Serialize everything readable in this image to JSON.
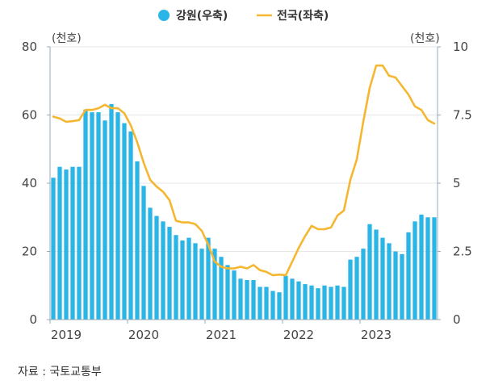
{
  "chart_data": {
    "type": "bar+line",
    "title": "",
    "legend": [
      {
        "name": "강원(우축)",
        "type": "bar",
        "color": "#29b5e8"
      },
      {
        "name": "전국(좌축)",
        "type": "line",
        "color": "#f5b732"
      }
    ],
    "left_axis": {
      "unit": "(천호)",
      "ticks": [
        "0",
        "20",
        "40",
        "60",
        "80"
      ],
      "range": [
        0,
        80
      ]
    },
    "right_axis": {
      "unit": "(천호)",
      "ticks": [
        "0",
        "2.5",
        "5",
        "7.5",
        "10"
      ],
      "range": [
        0,
        10
      ]
    },
    "x_tick_labels": [
      "2019",
      "2020",
      "2021",
      "2022",
      "2023"
    ],
    "months": [
      "2019-01",
      "2019-02",
      "2019-03",
      "2019-04",
      "2019-05",
      "2019-06",
      "2019-07",
      "2019-08",
      "2019-09",
      "2019-10",
      "2019-11",
      "2019-12",
      "2020-01",
      "2020-02",
      "2020-03",
      "2020-04",
      "2020-05",
      "2020-06",
      "2020-07",
      "2020-08",
      "2020-09",
      "2020-10",
      "2020-11",
      "2020-12",
      "2021-01",
      "2021-02",
      "2021-03",
      "2021-04",
      "2021-05",
      "2021-06",
      "2021-07",
      "2021-08",
      "2021-09",
      "2021-10",
      "2021-11",
      "2021-12",
      "2022-01",
      "2022-02",
      "2022-03",
      "2022-04",
      "2022-05",
      "2022-06",
      "2022-07",
      "2022-08",
      "2022-09",
      "2022-10",
      "2022-11",
      "2022-12",
      "2023-01",
      "2023-02",
      "2023-03",
      "2023-04",
      "2023-05",
      "2023-06",
      "2023-07",
      "2023-08",
      "2023-09",
      "2023-10",
      "2023-11",
      "2023-12"
    ],
    "gangwon_right_axis": [
      5.2,
      5.6,
      5.5,
      5.6,
      5.6,
      7.7,
      7.6,
      7.6,
      7.3,
      7.9,
      7.6,
      7.2,
      6.9,
      5.8,
      4.9,
      4.1,
      3.8,
      3.6,
      3.4,
      3.1,
      2.9,
      3.0,
      2.8,
      2.6,
      3.0,
      2.6,
      2.3,
      2.0,
      1.8,
      1.5,
      1.45,
      1.45,
      1.2,
      1.2,
      1.05,
      1.0,
      1.6,
      1.5,
      1.4,
      1.3,
      1.25,
      1.15,
      1.25,
      1.2,
      1.25,
      1.2,
      2.2,
      2.3,
      2.6,
      3.5,
      3.3,
      3.0,
      2.8,
      2.5,
      2.4,
      3.2,
      3.6,
      3.85,
      3.75,
      3.75
    ],
    "national_left_axis": [
      59.5,
      59.0,
      58.0,
      58.2,
      58.5,
      61.5,
      61.5,
      62.0,
      63.0,
      62.0,
      62.0,
      60.5,
      57.0,
      52.0,
      46.0,
      41.0,
      39.0,
      37.5,
      35.0,
      29.0,
      28.5,
      28.5,
      28.0,
      26.0,
      22.0,
      17.0,
      15.5,
      15.0,
      15.0,
      15.5,
      15.0,
      16.0,
      14.5,
      14.0,
      13.0,
      13.2,
      13.0,
      17.0,
      21.0,
      24.5,
      27.5,
      26.5,
      26.5,
      27.0,
      30.5,
      32.0,
      41.0,
      47.0,
      58.0,
      68.0,
      74.5,
      74.5,
      71.5,
      71.0,
      68.5,
      66.0,
      62.5,
      61.5,
      58.5,
      57.5
    ]
  },
  "source": "자료 : 국토교통부"
}
